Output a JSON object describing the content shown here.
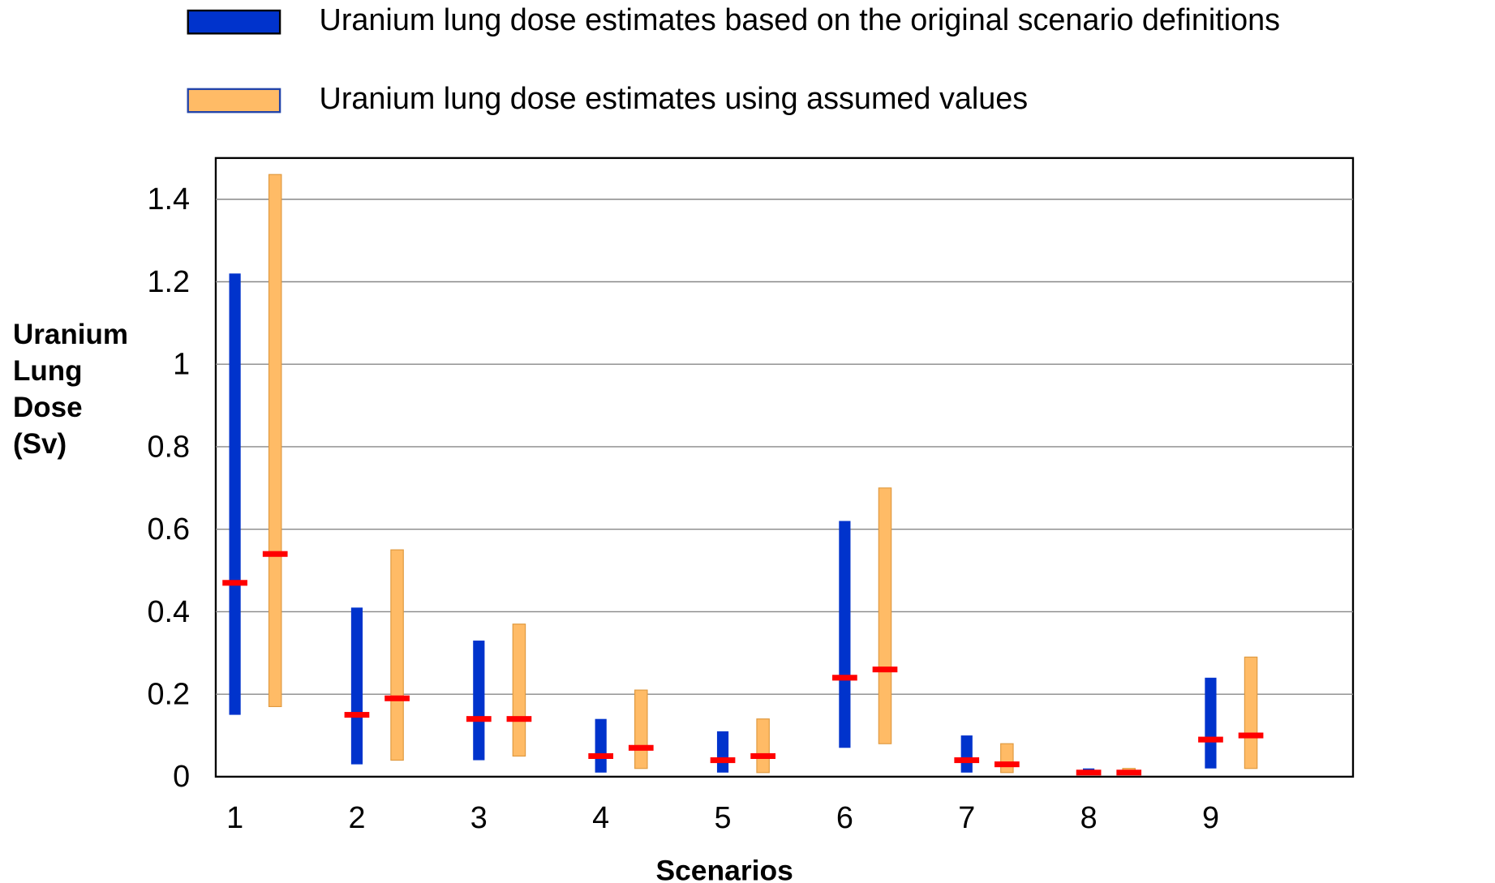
{
  "chart_data": {
    "type": "range",
    "xlabel": "Scenarios",
    "ylabel": "Uranium Lung Dose (Sv)",
    "categories": [
      "1",
      "2",
      "3",
      "4",
      "5",
      "6",
      "7",
      "8",
      "9"
    ],
    "median_color": "#ff0000",
    "series": [
      {
        "name": "Uranium lung dose estimates based on the original scenario definitions",
        "color": "#0033cc",
        "low": [
          0.15,
          0.03,
          0.04,
          0.01,
          0.01,
          0.07,
          0.01,
          0.005,
          0.02
        ],
        "high": [
          1.22,
          0.41,
          0.33,
          0.14,
          0.11,
          0.62,
          0.1,
          0.02,
          0.24
        ],
        "values": [
          0.47,
          0.15,
          0.14,
          0.05,
          0.04,
          0.24,
          0.04,
          0.01,
          0.09
        ]
      },
      {
        "name": "Uranium lung dose estimates using assumed values",
        "color": "#ffbb66",
        "low": [
          0.17,
          0.04,
          0.05,
          0.02,
          0.01,
          0.08,
          0.01,
          0.005,
          0.02
        ],
        "high": [
          1.46,
          0.55,
          0.37,
          0.21,
          0.14,
          0.7,
          0.08,
          0.02,
          0.29
        ],
        "values": [
          0.54,
          0.19,
          0.14,
          0.07,
          0.05,
          0.26,
          0.03,
          0.01,
          0.1
        ]
      }
    ],
    "ylim": [
      0,
      1.5
    ],
    "yticks": [
      0,
      0.2,
      0.4,
      0.6,
      0.8,
      1,
      1.2,
      1.4
    ],
    "grid": true
  }
}
